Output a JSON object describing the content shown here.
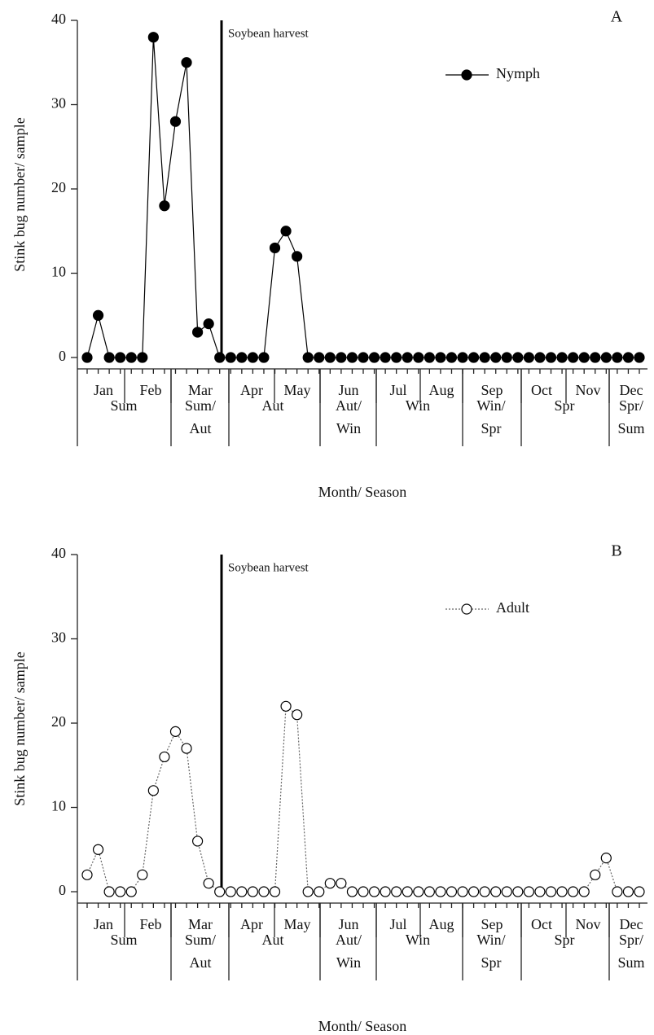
{
  "chart_data": [
    {
      "type": "line",
      "panel_label": "A",
      "annotation": "Soybean harvest",
      "xlabel": "Month/ Season",
      "ylabel": "Stink bug number/ sample",
      "ylim": [
        -1.35,
        40
      ],
      "yticks": [
        0,
        10,
        20,
        30,
        40
      ],
      "legend": "upper right",
      "months": [
        "Jan",
        "Feb",
        "Mar",
        "Apr",
        "May",
        "Jun",
        "Jul",
        "Aug",
        "Sep",
        "Oct",
        "Nov",
        "Dec"
      ],
      "seasons": [
        "Sum",
        "Sum/ Aut",
        "Aut",
        "Aut/ Win",
        "Win",
        "Win/ Spr",
        "Spr",
        "Spr/ Sum"
      ],
      "series": [
        {
          "name": "Nymph",
          "color": "#000000",
          "marker": "filled",
          "linestyle": "solid",
          "values": [
            0,
            5,
            0,
            0,
            0,
            0,
            38,
            18,
            28,
            35,
            3,
            4,
            0,
            0,
            0,
            0,
            0,
            13,
            15,
            12,
            0,
            0,
            0,
            0,
            0,
            0,
            0,
            0,
            0,
            0,
            0,
            0,
            0,
            0,
            0,
            0,
            0,
            0,
            0,
            0,
            0,
            0,
            0,
            0,
            0,
            0,
            0,
            0,
            0,
            0,
            0
          ]
        }
      ]
    },
    {
      "type": "line",
      "panel_label": "B",
      "annotation": "Soybean harvest",
      "xlabel": "Month/ Season",
      "ylabel": "Stink bug number/ sample",
      "ylim": [
        -1.35,
        40
      ],
      "yticks": [
        0,
        10,
        20,
        30,
        40
      ],
      "legend": "upper right",
      "months": [
        "Jan",
        "Feb",
        "Mar",
        "Apr",
        "May",
        "Jun",
        "Jul",
        "Aug",
        "Sep",
        "Oct",
        "Nov",
        "Dec"
      ],
      "seasons": [
        "Sum",
        "Sum/ Aut",
        "Aut",
        "Aut/ Win",
        "Win",
        "Win/ Spr",
        "Spr",
        "Spr/ Sum"
      ],
      "series": [
        {
          "name": "Adult",
          "color": "#666666",
          "marker": "open",
          "linestyle": "dotted",
          "values": [
            2,
            5,
            0,
            0,
            0,
            2,
            12,
            16,
            19,
            17,
            6,
            1,
            0,
            0,
            0,
            0,
            0,
            0,
            22,
            21,
            0,
            0,
            1,
            1,
            0,
            0,
            0,
            0,
            0,
            0,
            0,
            0,
            0,
            0,
            0,
            0,
            0,
            0,
            0,
            0,
            0,
            0,
            0,
            0,
            0,
            0,
            2,
            4,
            0,
            0,
            0
          ]
        }
      ]
    }
  ]
}
